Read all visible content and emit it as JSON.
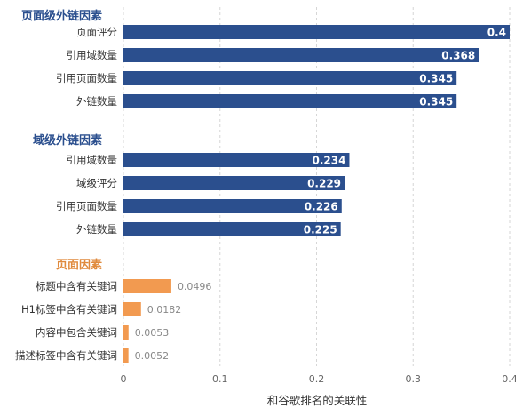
{
  "chart_data": {
    "type": "bar",
    "orientation": "horizontal",
    "xlabel": "和谷歌排名的关联性",
    "xlim": [
      0,
      0.4
    ],
    "xticks": [
      "0",
      "0.1",
      "0.2",
      "0.3",
      "0.4"
    ],
    "grid": "vertical dashed",
    "groups": [
      {
        "title": "页面级外链因素",
        "color": "#2b4f8e",
        "items": [
          {
            "label": "页面评分",
            "value": 0.4,
            "value_label": "0.4"
          },
          {
            "label": "引用域数量",
            "value": 0.368,
            "value_label": "0.368"
          },
          {
            "label": "引用页面数量",
            "value": 0.345,
            "value_label": "0.345"
          },
          {
            "label": "外链数量",
            "value": 0.345,
            "value_label": "0.345"
          }
        ]
      },
      {
        "title": "域级外链因素",
        "color": "#2b4f8e",
        "items": [
          {
            "label": "引用域数量",
            "value": 0.234,
            "value_label": "0.234"
          },
          {
            "label": "域级评分",
            "value": 0.229,
            "value_label": "0.229"
          },
          {
            "label": "引用页面数量",
            "value": 0.226,
            "value_label": "0.226"
          },
          {
            "label": "外链数量",
            "value": 0.225,
            "value_label": "0.225"
          }
        ]
      },
      {
        "title": "页面因素",
        "color": "#f29a50",
        "items": [
          {
            "label": "标题中含有关键词",
            "value": 0.0496,
            "value_label": "0.0496"
          },
          {
            "label": "H1标签中含有关键词",
            "value": 0.0182,
            "value_label": "0.0182"
          },
          {
            "label": "内容中包含关键词",
            "value": 0.0053,
            "value_label": "0.0053"
          },
          {
            "label": "描述标签中含有关键词",
            "value": 0.0052,
            "value_label": "0.0052"
          }
        ]
      }
    ]
  }
}
